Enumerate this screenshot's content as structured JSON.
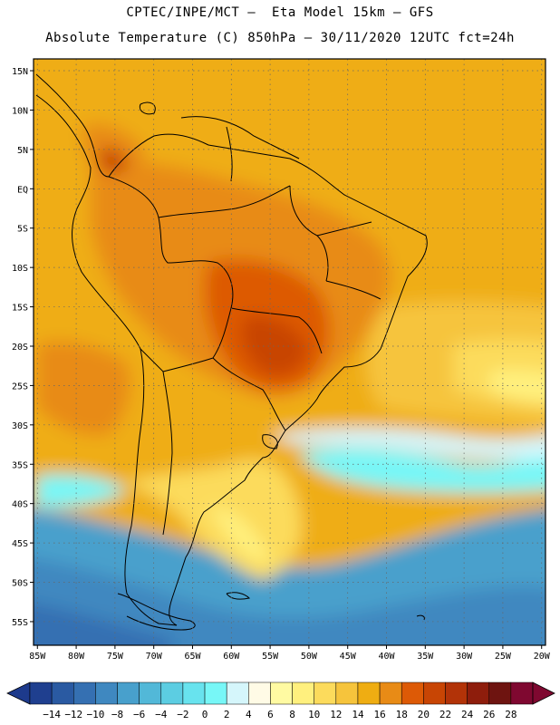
{
  "header": {
    "line1": "CPTEC/INPE/MCT –  Eta Model 15km – GFS",
    "line2": "Absolute Temperature (C) 850hPa – 30/11/2020 12UTC fct=24h"
  },
  "map": {
    "lat_labels": [
      "15N",
      "10N",
      "5N",
      "EQ",
      "5S",
      "10S",
      "15S",
      "20S",
      "25S",
      "30S",
      "35S",
      "40S",
      "45S",
      "50S",
      "55S"
    ],
    "lat_values": [
      15,
      10,
      5,
      0,
      -5,
      -10,
      -15,
      -20,
      -25,
      -30,
      -35,
      -40,
      -45,
      -50,
      -55
    ],
    "lon_labels": [
      "85W",
      "80W",
      "75W",
      "70W",
      "65W",
      "60W",
      "55W",
      "50W",
      "45W",
      "40W",
      "35W",
      "30W",
      "25W",
      "20W"
    ],
    "lon_values": [
      -85,
      -80,
      -75,
      -70,
      -65,
      -60,
      -55,
      -50,
      -45,
      -40,
      -35,
      -30,
      -25,
      -20
    ],
    "extent": {
      "lon_min": -85.5,
      "lon_max": -19.5,
      "lat_min": -58,
      "lat_max": 16.5
    }
  },
  "colorbar": {
    "labels": [
      "-14",
      "-12",
      "-10",
      "-8",
      "-6",
      "-4",
      "-2",
      "0",
      "2",
      "4",
      "6",
      "8",
      "10",
      "12",
      "14",
      "16",
      "18",
      "20",
      "22",
      "24",
      "26",
      "28"
    ],
    "colors": [
      "#1f3f8f",
      "#2a5aa2",
      "#3570b2",
      "#3f88c0",
      "#48a0cc",
      "#52b8d8",
      "#5ccde2",
      "#68e3ee",
      "#77f7f7",
      "#d5f6fb",
      "#fffbe6",
      "#fffaa2",
      "#fff07e",
      "#fcdb5c",
      "#f6c43c",
      "#efad12",
      "#e88b16",
      "#dd5a06",
      "#c84504",
      "#b23308",
      "#8e1d0c",
      "#6e1410",
      "#7f0830"
    ],
    "under_color": "#1d3a8c",
    "over_color": "#7f0830"
  }
}
